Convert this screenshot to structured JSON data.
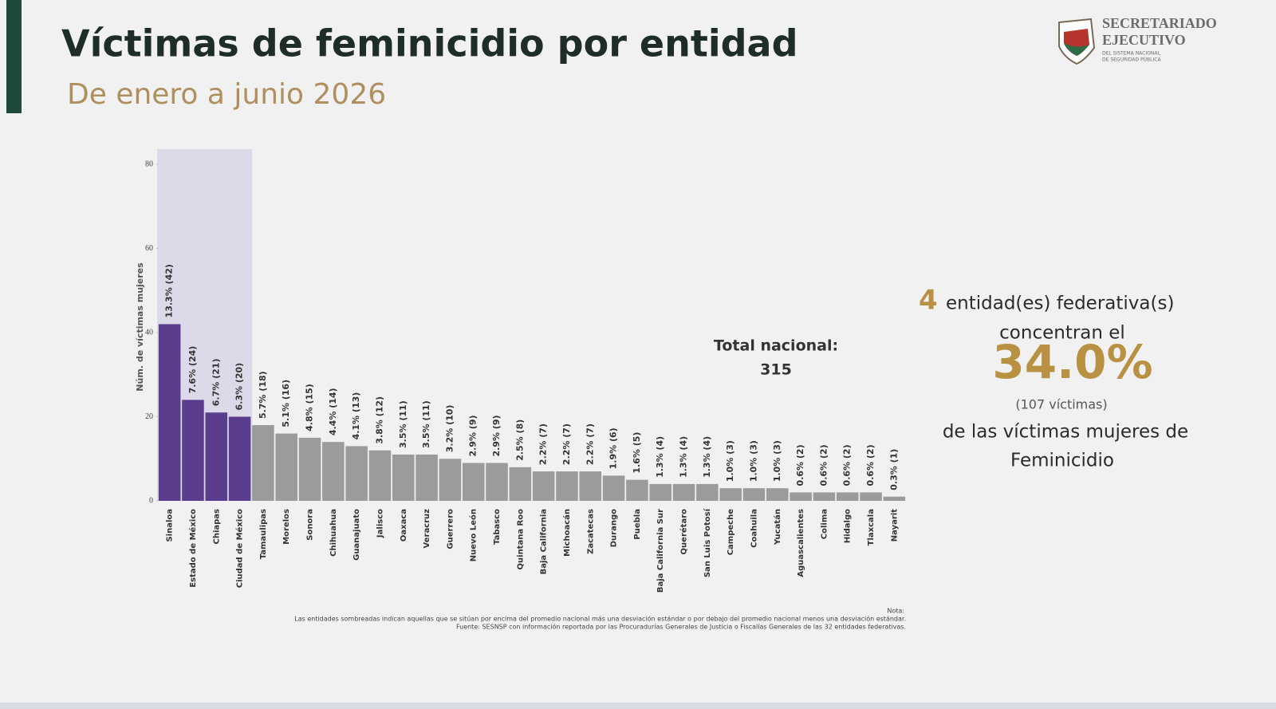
{
  "header": {
    "logo": [
      "SECRETARIADO",
      "EJECUTIVO",
      "DEL SISTEMA NACIONAL",
      "DE SEGURIDAD PÚBLICA"
    ]
  },
  "chart_data": {
    "type": "bar",
    "title": "Víctimas de feminicidio por entidad",
    "subtitle": "De enero a junio 2026",
    "y_label": "Núm. de víctimas mujeres",
    "categories": [
      "Sinaloa",
      "Estado de México",
      "Chiapas",
      "Ciudad de México",
      "Tamaulipas",
      "Morelos",
      "Sonora",
      "Chihuahua",
      "Guanajuato",
      "Jalisco",
      "Oaxaca",
      "Veracruz",
      "Guerrero",
      "Nuevo León",
      "Tabasco",
      "Quintana Roo",
      "Baja California",
      "Michoacán",
      "Zacatecas",
      "Durango",
      "Puebla",
      "Baja California Sur",
      "Querétaro",
      "San Luis Potosí",
      "Campeche",
      "Coahuila",
      "Yucatán",
      "Aguascalientes",
      "Colima",
      "Hidalgo",
      "Tlaxcala",
      "Nayarit"
    ],
    "values": [
      42,
      24,
      21,
      20,
      18,
      16,
      15,
      14,
      13,
      12,
      11,
      11,
      10,
      9,
      9,
      8,
      7,
      7,
      7,
      6,
      5,
      4,
      4,
      4,
      3,
      3,
      3,
      2,
      2,
      2,
      2,
      1
    ],
    "value_labels": [
      "13.3% (42)",
      "7.6% (24)",
      "6.7% (21)",
      "6.3% (20)",
      "5.7% (18)",
      "5.1% (16)",
      "4.8% (15)",
      "4.4% (14)",
      "4.1% (13)",
      "3.8% (12)",
      "3.5% (11)",
      "3.5% (11)",
      "3.2% (10)",
      "2.9% (9)",
      "2.9% (9)",
      "2.5% (8)",
      "2.2% (7)",
      "2.2% (7)",
      "2.2% (7)",
      "1.9% (6)",
      "1.6% (5)",
      "1.3% (4)",
      "1.3% (4)",
      "1.3% (4)",
      "1.0% (3)",
      "1.0% (3)",
      "1.0% (3)",
      "0.6% (2)",
      "0.6% (2)",
      "0.6% (2)",
      "0.6% (2)",
      "0.3% (1)"
    ],
    "color": "#9b9b9b",
    "highlight_color": "#5b3d8e",
    "highlight_band": "#dcdae9",
    "colors": [
      "#5b3d8e",
      "#5b3d8e",
      "#5b3d8e",
      "#5b3d8e",
      "#9b9b9b",
      "#9b9b9b",
      "#9b9b9b",
      "#9b9b9b",
      "#9b9b9b",
      "#9b9b9b",
      "#9b9b9b",
      "#9b9b9b",
      "#9b9b9b",
      "#9b9b9b",
      "#9b9b9b",
      "#9b9b9b",
      "#9b9b9b",
      "#9b9b9b",
      "#9b9b9b",
      "#9b9b9b",
      "#9b9b9b",
      "#9b9b9b",
      "#9b9b9b",
      "#9b9b9b",
      "#9b9b9b",
      "#9b9b9b",
      "#9b9b9b",
      "#9b9b9b",
      "#9b9b9b",
      "#9b9b9b",
      "#9b9b9b",
      "#9b9b9b"
    ],
    "ylim": [
      0,
      80
    ],
    "yticks": [
      0,
      20,
      40,
      60,
      80
    ],
    "grid": false,
    "annotations": {
      "total_label": "Total nacional:",
      "total_value": "315",
      "summary": {
        "count": "4",
        "line1": "entidad(es)  federativa(s)",
        "line2": "concentran el",
        "percent": "34.0%",
        "victims": "(107  víctimas)",
        "line3": "de las  víctimas  mujeres de",
        "line4": "Feminicidio"
      }
    },
    "notes": [
      "Nota:",
      "Las entidades sombreadas indican aquellas que se sitúan por encima del promedio nacional más una desviación estándar o por debajo del promedio nacional menos una desviación estándar.",
      "Fuente: SESNSP con información reportada por las Procuradurías Generales de Justicia o Fiscalías Generales de las 32 entidades federativas."
    ]
  }
}
